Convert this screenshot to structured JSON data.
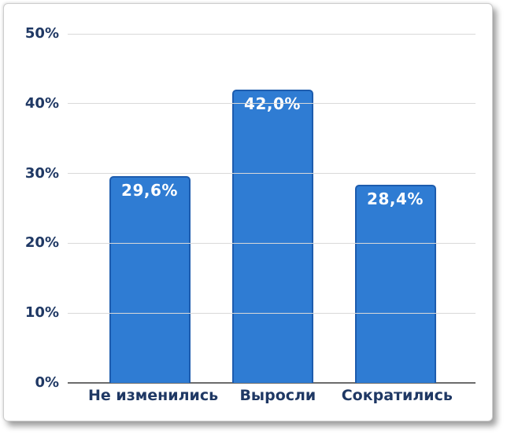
{
  "chart_data": {
    "type": "bar",
    "categories": [
      "Не изменились",
      "Выросли",
      "Сократились"
    ],
    "values": [
      29.6,
      42.0,
      28.4
    ],
    "value_labels": [
      "29,6%",
      "42,0%",
      "28,4%"
    ],
    "title": "",
    "xlabel": "",
    "ylabel": "",
    "ylim": [
      0,
      50
    ],
    "yticks": [
      0,
      10,
      20,
      30,
      40,
      50
    ],
    "ytick_labels": [
      "0%",
      "10%",
      "20%",
      "30%",
      "40%",
      "50%"
    ],
    "grid": true,
    "legend": false,
    "layout": {
      "legend_position": "none",
      "data_labels_position": "inside-top"
    },
    "colors": {
      "bar_fill": "#2F7CD3",
      "bar_border": "#1D5CAE",
      "bar_label_text": "#FFFFFF",
      "axis_text": "#1F3864",
      "gridline": "#D9D9D9",
      "axis_line": "#6B6B6B",
      "card_background": "#FFFFFF"
    }
  }
}
